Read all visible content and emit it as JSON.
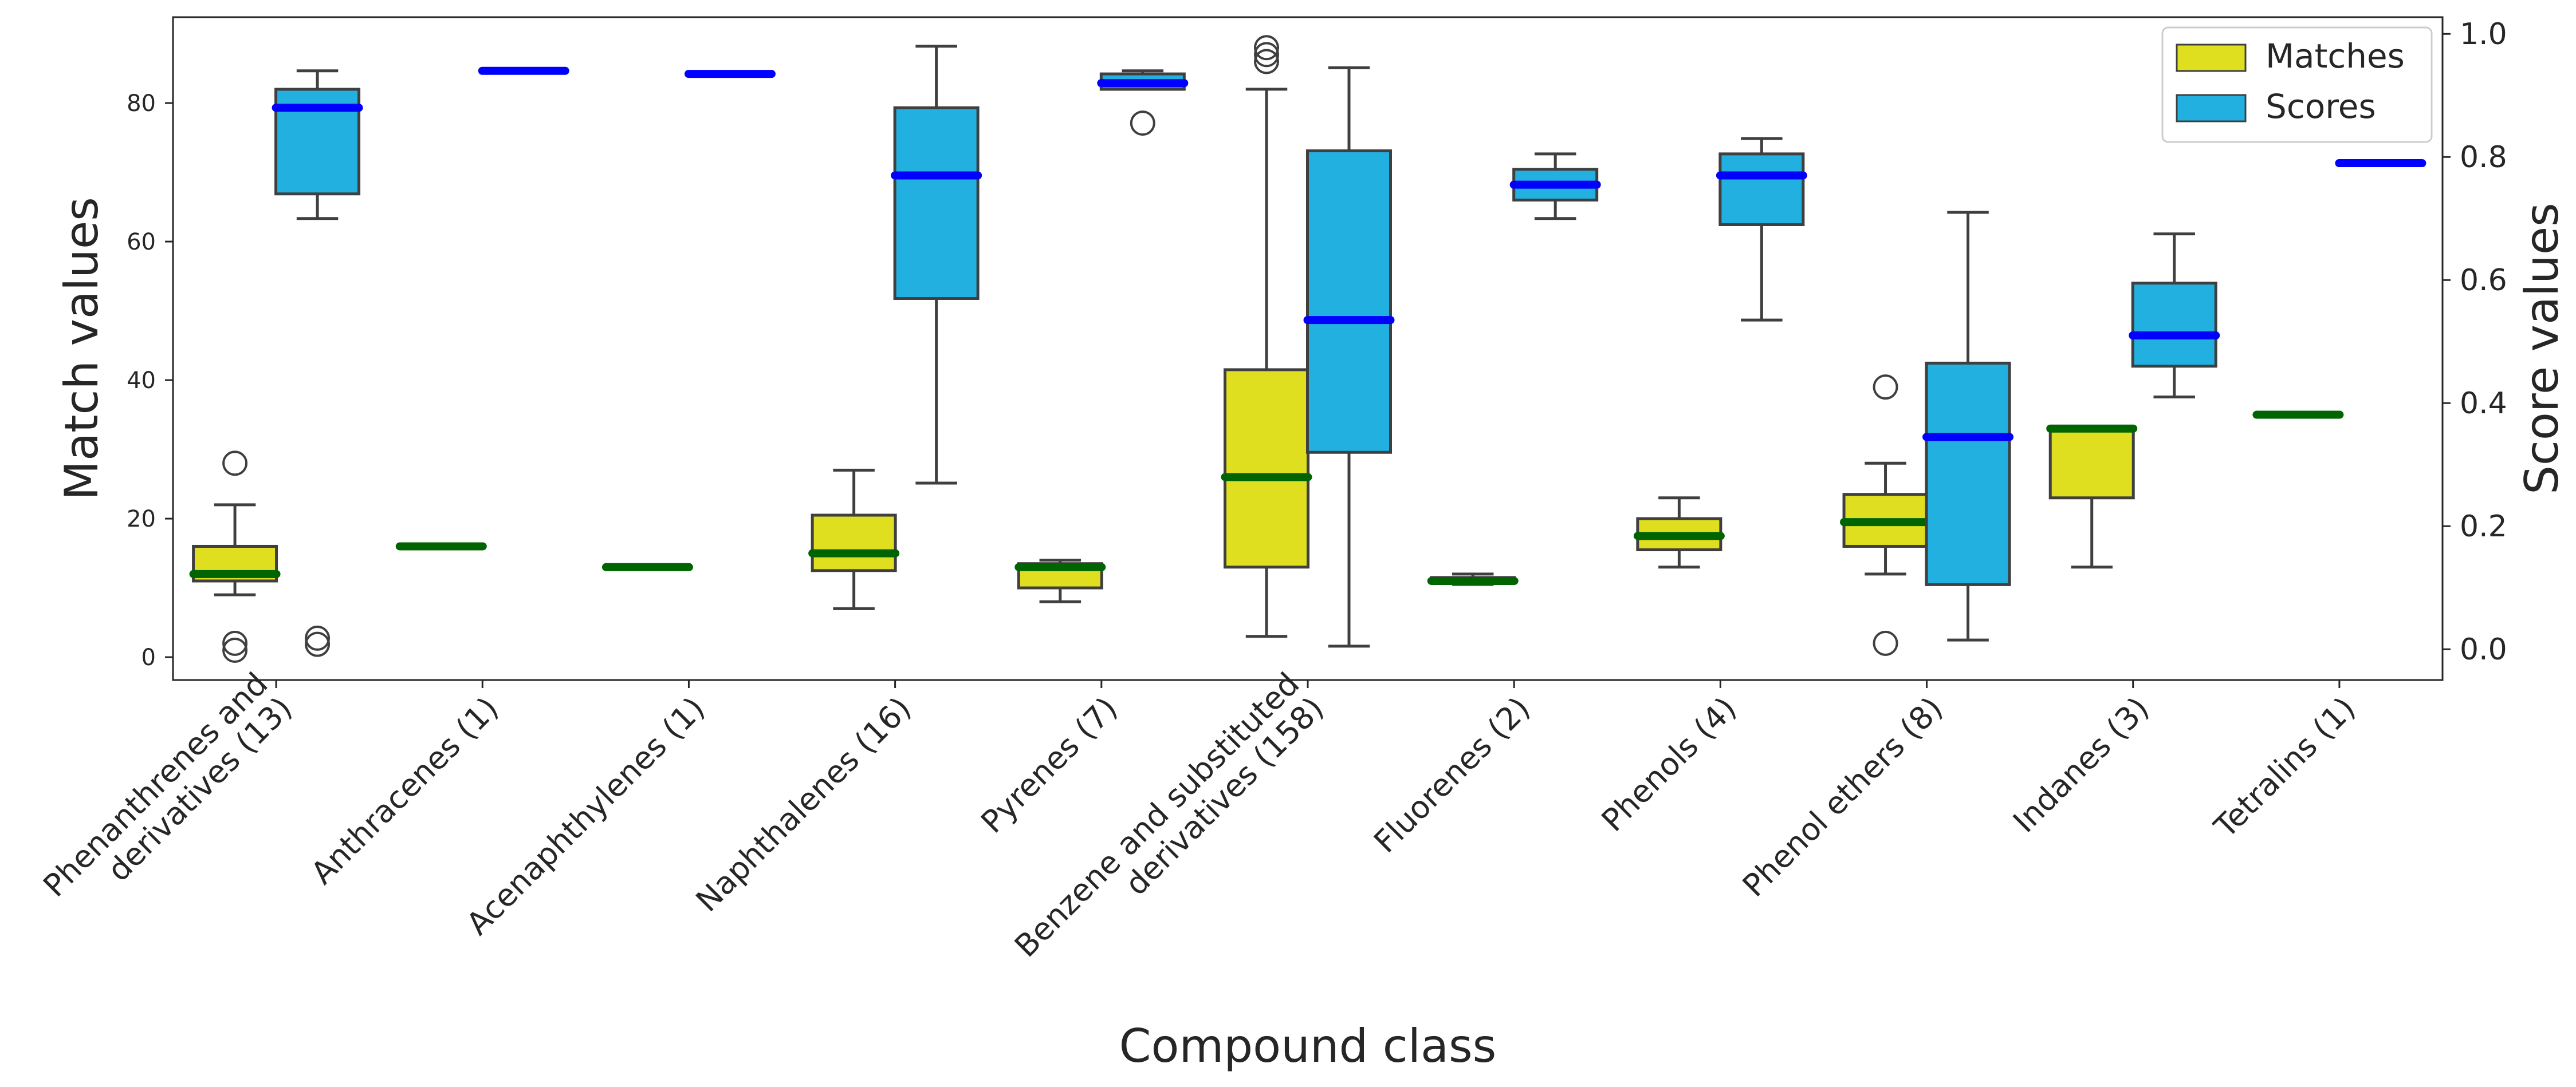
{
  "chart_data": {
    "type": "box",
    "xlabel": "Compound class",
    "ylabel_left": "Match values",
    "ylabel_right": "Score values",
    "ylim_left": [
      -3.3,
      92.4
    ],
    "ylim_right": [
      -0.05,
      1.0272
    ],
    "yticks_left": [
      0,
      20,
      40,
      60,
      80
    ],
    "yticks_right": [
      0.0,
      0.2,
      0.4,
      0.6,
      0.8,
      1.0
    ],
    "grid": false,
    "legend_placement": "top-right",
    "categories": [
      [
        "Phenanthrenes and",
        "derivatives (13)"
      ],
      [
        "Anthracenes (1)"
      ],
      [
        "Acenaphthylenes (1)"
      ],
      [
        "Naphthalenes (16)"
      ],
      [
        "Pyrenes (7)"
      ],
      [
        "Benzene and substituted",
        "derivatives (158)"
      ],
      [
        "Fluorenes (2)"
      ],
      [
        "Phenols (4)"
      ],
      [
        "Phenol ethers (8)"
      ],
      [
        "Indanes (3)"
      ],
      [
        "Tetralins (1)"
      ]
    ],
    "series": [
      {
        "name": "Matches",
        "axis": "left",
        "fill": "#dfdf1f",
        "median_color": "#006400",
        "boxes": [
          {
            "whislo": 9,
            "q1": 11,
            "med": 12,
            "q3": 16,
            "whishi": 22,
            "fliers": [
              28,
              2,
              1
            ]
          },
          {
            "whislo": 16,
            "q1": 16,
            "med": 16,
            "q3": 16,
            "whishi": 16,
            "fliers": []
          },
          {
            "whislo": 13,
            "q1": 13,
            "med": 13,
            "q3": 13,
            "whishi": 13,
            "fliers": []
          },
          {
            "whislo": 7,
            "q1": 12.5,
            "med": 15,
            "q3": 20.5,
            "whishi": 27,
            "fliers": []
          },
          {
            "whislo": 8,
            "q1": 10,
            "med": 13,
            "q3": 13.5,
            "whishi": 14,
            "fliers": []
          },
          {
            "whislo": 3,
            "q1": 13,
            "med": 26,
            "q3": 41.5,
            "whishi": 82,
            "fliers": [
              88,
              87,
              86
            ]
          },
          {
            "whislo": 10.5,
            "q1": 10.7,
            "med": 11,
            "q3": 11.5,
            "whishi": 12,
            "fliers": []
          },
          {
            "whislo": 13,
            "q1": 15.5,
            "med": 17.5,
            "q3": 20,
            "whishi": 23,
            "fliers": []
          },
          {
            "whislo": 12,
            "q1": 16,
            "med": 19.5,
            "q3": 23.5,
            "whishi": 28,
            "fliers": [
              39,
              2
            ]
          },
          {
            "whislo": 13,
            "q1": 23,
            "med": 33,
            "q3": 33,
            "whishi": 33,
            "fliers": []
          },
          {
            "whislo": 35,
            "q1": 35,
            "med": 35,
            "q3": 35,
            "whishi": 35,
            "fliers": []
          }
        ]
      },
      {
        "name": "Scores",
        "axis": "right",
        "fill": "#22b0e0",
        "median_color": "#0000ff",
        "boxes": [
          {
            "whislo": 0.7,
            "q1": 0.74,
            "med": 0.88,
            "q3": 0.91,
            "whishi": 0.94,
            "fliers": [
              0.018,
              0.008
            ]
          },
          {
            "whislo": 0.94,
            "q1": 0.94,
            "med": 0.94,
            "q3": 0.94,
            "whishi": 0.94,
            "fliers": []
          },
          {
            "whislo": 0.935,
            "q1": 0.935,
            "med": 0.935,
            "q3": 0.935,
            "whishi": 0.935,
            "fliers": []
          },
          {
            "whislo": 0.27,
            "q1": 0.57,
            "med": 0.77,
            "q3": 0.88,
            "whishi": 0.98,
            "fliers": []
          },
          {
            "whislo": 0.91,
            "q1": 0.91,
            "med": 0.92,
            "q3": 0.935,
            "whishi": 0.94,
            "fliers": [
              0.855
            ]
          },
          {
            "whislo": 0.005,
            "q1": 0.32,
            "med": 0.535,
            "q3": 0.81,
            "whishi": 0.945,
            "fliers": []
          },
          {
            "whislo": 0.7,
            "q1": 0.73,
            "med": 0.755,
            "q3": 0.78,
            "whishi": 0.805,
            "fliers": []
          },
          {
            "whislo": 0.535,
            "q1": 0.69,
            "med": 0.77,
            "q3": 0.805,
            "whishi": 0.83,
            "fliers": []
          },
          {
            "whislo": 0.015,
            "q1": 0.105,
            "med": 0.345,
            "q3": 0.465,
            "whishi": 0.71,
            "fliers": []
          },
          {
            "whislo": 0.41,
            "q1": 0.46,
            "med": 0.51,
            "q3": 0.595,
            "whishi": 0.675,
            "fliers": []
          },
          {
            "whislo": 0.79,
            "q1": 0.79,
            "med": 0.79,
            "q3": 0.79,
            "whishi": 0.79,
            "fliers": []
          }
        ]
      }
    ]
  }
}
